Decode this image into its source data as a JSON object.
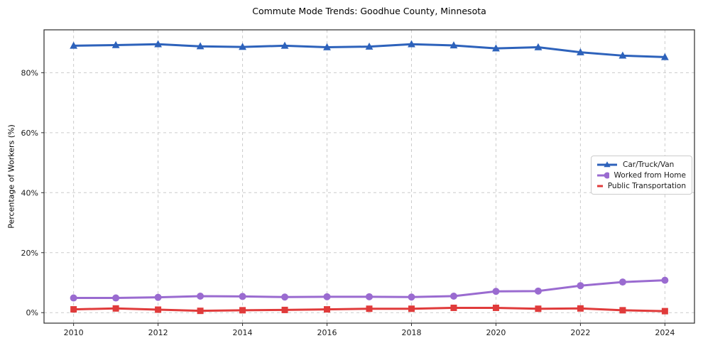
{
  "title": "Commute Mode Trends: Goodhue County, Minnesota",
  "axes": {
    "ylabel": "Percentage of Workers (%)",
    "xlabel": ""
  },
  "chart_data": {
    "type": "line",
    "title": "Commute Mode Trends: Goodhue County, Minnesota",
    "xlabel": "",
    "ylabel": "Percentage of Workers (%)",
    "x": [
      2010,
      2011,
      2012,
      2013,
      2014,
      2015,
      2016,
      2017,
      2018,
      2019,
      2020,
      2021,
      2022,
      2023,
      2024
    ],
    "series": [
      {
        "name": "Car/Truck/Van",
        "color": "#2d62bb",
        "marker": "triangle",
        "values": [
          89.0,
          89.2,
          89.5,
          88.8,
          88.6,
          89.0,
          88.5,
          88.7,
          89.5,
          89.1,
          88.1,
          88.5,
          86.8,
          85.7,
          85.2
        ]
      },
      {
        "name": "Worked from Home",
        "color": "#9a6bd0",
        "marker": "circle",
        "values": [
          4.9,
          4.9,
          5.1,
          5.5,
          5.4,
          5.2,
          5.3,
          5.3,
          5.2,
          5.5,
          7.1,
          7.2,
          9.0,
          10.2,
          10.8
        ]
      },
      {
        "name": "Public Transportation",
        "color": "#e03b3b",
        "marker": "square",
        "values": [
          1.1,
          1.4,
          1.0,
          0.6,
          0.8,
          0.9,
          1.1,
          1.3,
          1.3,
          1.6,
          1.6,
          1.3,
          1.4,
          0.8,
          0.5
        ]
      }
    ],
    "xticks": [
      2010,
      2012,
      2014,
      2016,
      2018,
      2020,
      2022,
      2024
    ],
    "yticks": [
      0,
      20,
      40,
      60,
      80
    ],
    "ytick_suffix": "%",
    "xlim": [
      2009.3,
      2024.7
    ],
    "ylim": [
      -3.5,
      94.3
    ],
    "grid": true,
    "grid_color": "#cccccc",
    "spine_color": "#2b2b2b",
    "tick_label_color": "#1a1a1a",
    "legend_position": "center-right"
  }
}
